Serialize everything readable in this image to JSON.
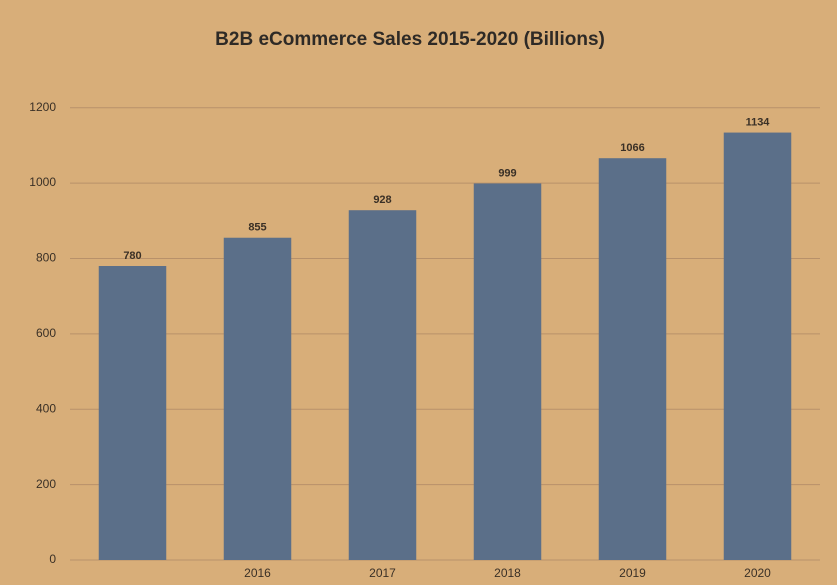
{
  "chart_data": {
    "type": "bar",
    "title": "B2B eCommerce Sales 2015-2020 (Billions)",
    "categories": [
      null,
      "2016",
      "2017",
      "2018",
      "2019",
      "2020"
    ],
    "values": [
      780,
      855,
      928,
      999,
      1066,
      1134
    ],
    "color": "#5b6f89",
    "ylim": [
      0,
      1300
    ],
    "yticks": [
      0,
      200,
      400,
      600,
      800,
      1000,
      1200
    ],
    "grid": true
  }
}
